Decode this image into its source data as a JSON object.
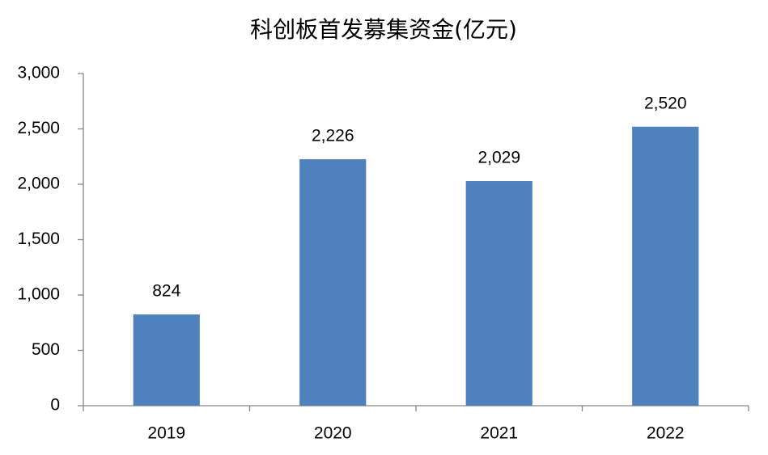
{
  "chart_data": {
    "type": "bar",
    "title": "科创板首发募集资金(亿元)",
    "categories": [
      "2019",
      "2020",
      "2021",
      "2022"
    ],
    "values": [
      824,
      2226,
      2029,
      2520
    ],
    "value_labels": [
      "824",
      "2,226",
      "2,029",
      "2,520"
    ],
    "color": "#4f81bd",
    "ylim": [
      0,
      3000
    ],
    "yticks": [
      0,
      500,
      {
        "value": 1000,
        "label": "1,000"
      },
      {
        "value": 1500,
        "label": "1,500"
      },
      {
        "value": 2000,
        "label": "2,000"
      },
      {
        "value": 2500,
        "label": "2,500"
      },
      {
        "value": 3000,
        "label": "3,000"
      }
    ],
    "grid": false
  }
}
